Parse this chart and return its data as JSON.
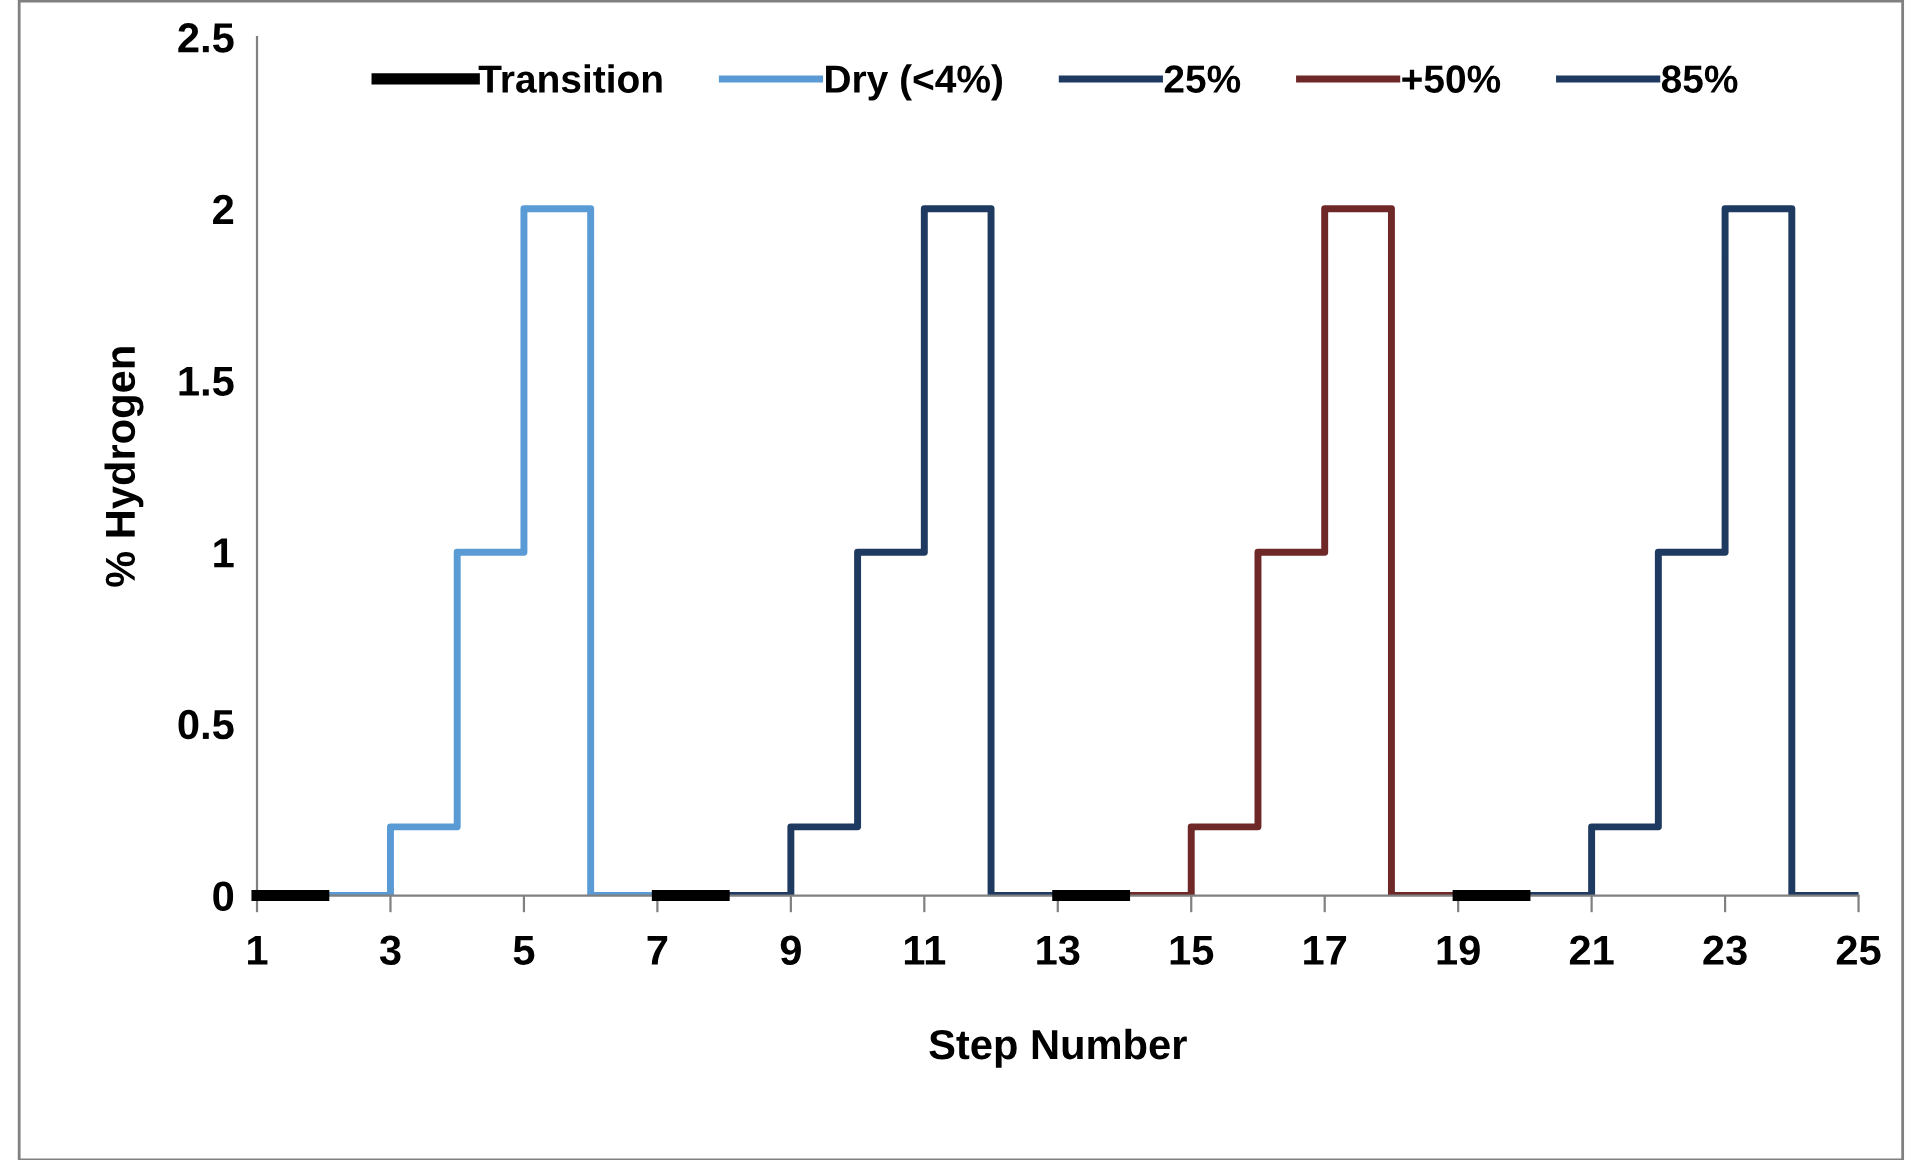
{
  "chart_data": {
    "type": "step",
    "xlabel": "Step Number",
    "ylabel": "% Hydrogen",
    "xlim": [
      1,
      25
    ],
    "xticks": [
      1,
      3,
      5,
      7,
      9,
      11,
      13,
      15,
      17,
      19,
      21,
      23,
      25
    ],
    "ylim": [
      0,
      2.5
    ],
    "yticks": [
      0,
      0.5,
      1,
      1.5,
      2,
      2.5
    ],
    "grid": false,
    "legend": "top",
    "series": [
      {
        "name": "Transition",
        "type": "line",
        "color": "#000000",
        "x": [
          1,
          2,
          4,
          7,
          8,
          10,
          13,
          14,
          16,
          19,
          20
        ],
        "values": [
          0,
          0,
          null,
          0,
          0,
          null,
          0,
          0,
          null,
          0,
          0
        ]
      },
      {
        "name": "Dry (<4%)",
        "color": "#5b9bd5",
        "x": [
          2,
          3,
          4,
          5,
          6,
          7
        ],
        "values": [
          0,
          0.2,
          1,
          2,
          0,
          0
        ]
      },
      {
        "name": "25%",
        "color": "#1f3a60",
        "x": [
          8,
          9,
          10,
          11,
          12,
          13
        ],
        "values": [
          0,
          0.2,
          1,
          2,
          0,
          0
        ]
      },
      {
        "name": "+50%",
        "color": "#6e2828",
        "x": [
          14,
          15,
          16,
          17,
          18,
          19
        ],
        "values": [
          0,
          0.2,
          1,
          2,
          0,
          0
        ]
      },
      {
        "name": "85%",
        "color": "#1f3a60",
        "x": [
          20,
          21,
          22,
          23,
          24,
          25
        ],
        "values": [
          0,
          0.2,
          1,
          2,
          0,
          0
        ]
      }
    ]
  }
}
